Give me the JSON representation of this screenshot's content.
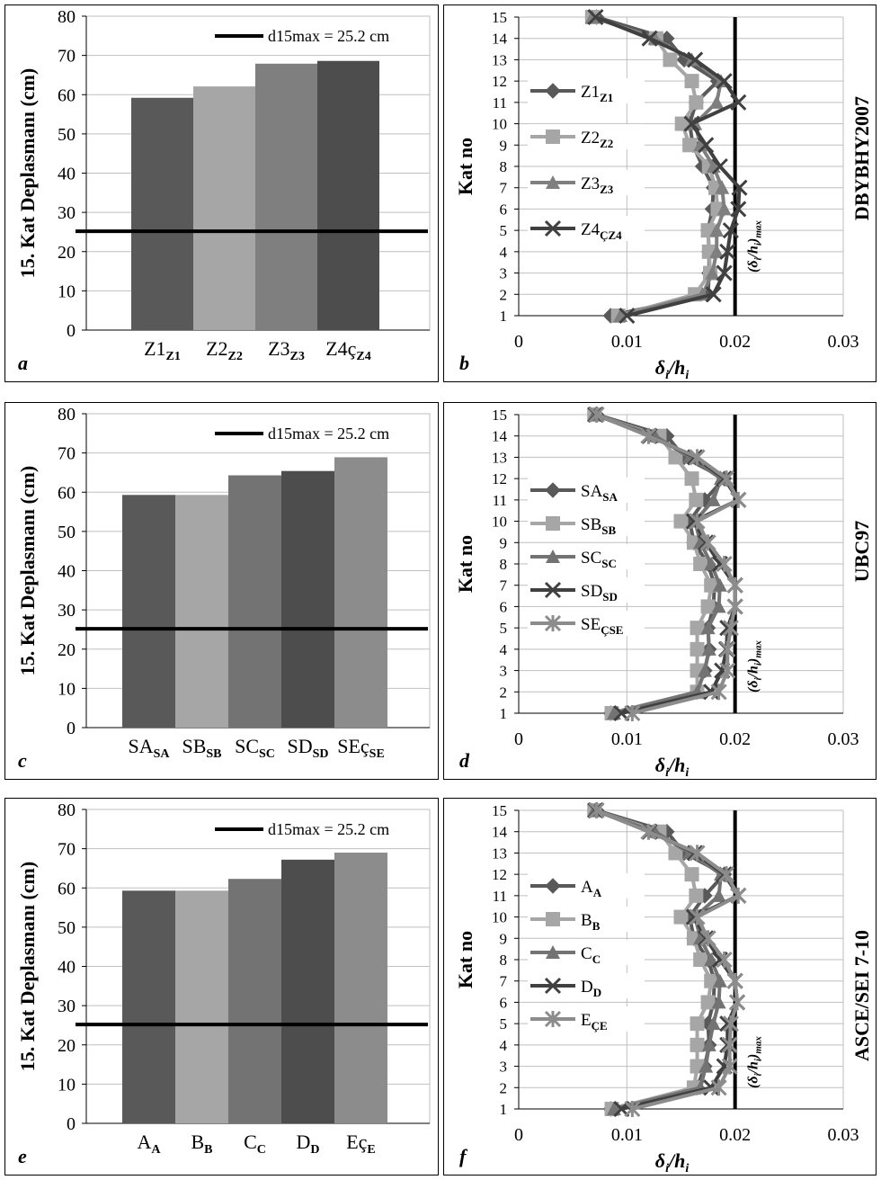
{
  "charts_left": [
    {
      "letter": "a",
      "ylabel": "15. Kat Deplasmanı (cm)",
      "ylim": [
        0,
        80
      ],
      "yticks": [
        0,
        10,
        20,
        30,
        40,
        50,
        60,
        70,
        80
      ],
      "ref_value": 25.2,
      "legend": "d15max = 25.2 cm",
      "colors": [
        "#595959",
        "#a6a6a6",
        "#7f7f7f",
        "#4d4d4d"
      ],
      "categories": [
        {
          "base": "Z1",
          "sub": "Z1"
        },
        {
          "base": "Z2",
          "sub": "Z2"
        },
        {
          "base": "Z3",
          "sub": "Z3"
        },
        {
          "base": "Z4ç",
          "sub": "Z4"
        }
      ],
      "values": [
        59.2,
        62.1,
        67.9,
        68.6
      ]
    },
    {
      "letter": "c",
      "ylabel": "15. Kat Deplasmanı (cm)",
      "ylim": [
        0,
        80
      ],
      "yticks": [
        0,
        10,
        20,
        30,
        40,
        50,
        60,
        70,
        80
      ],
      "ref_value": 25.2,
      "legend": "d15max = 25.2 cm",
      "colors": [
        "#595959",
        "#a6a6a6",
        "#737373",
        "#4d4d4d",
        "#8c8c8c"
      ],
      "categories": [
        {
          "base": "SA",
          "sub": "SA"
        },
        {
          "base": "SB",
          "sub": "SB"
        },
        {
          "base": "SC",
          "sub": "SC"
        },
        {
          "base": "SD",
          "sub": "SD"
        },
        {
          "base": "SEç",
          "sub": "SE"
        }
      ],
      "values": [
        59.3,
        59.3,
        64.3,
        65.4,
        68.9
      ]
    },
    {
      "letter": "e",
      "ylabel": "15. Kat Deplasmanı (cm)",
      "ylim": [
        0,
        80
      ],
      "yticks": [
        0,
        10,
        20,
        30,
        40,
        50,
        60,
        70,
        80
      ],
      "ref_value": 25.2,
      "legend": "d15max = 25.2 cm",
      "colors": [
        "#595959",
        "#a6a6a6",
        "#737373",
        "#4d4d4d",
        "#8c8c8c"
      ],
      "categories": [
        {
          "base": "A",
          "sub": "A"
        },
        {
          "base": "B",
          "sub": "B"
        },
        {
          "base": "C",
          "sub": "C"
        },
        {
          "base": "D",
          "sub": "D"
        },
        {
          "base": "Eç",
          "sub": "E"
        }
      ],
      "values": [
        59.3,
        59.3,
        62.3,
        67.2,
        69.0
      ]
    }
  ],
  "charts_right": [
    {
      "letter": "b",
      "ylabel": "Kat no",
      "xlabel_main": "δ",
      "xlabel_sub": "i",
      "xlabel_mid": "/h",
      "xlabel_sub2": "i",
      "side_label": "DBYBHY2007",
      "limit_label": "(δi/hi)max",
      "xlim": [
        0,
        0.03
      ],
      "xticks": [
        0,
        0.01,
        0.02,
        0.03
      ],
      "xtick_labels": [
        "0",
        "0.01",
        "0.02",
        "0.03"
      ],
      "ylim": [
        1,
        15
      ],
      "limit_x": 0.02,
      "series": [
        {
          "base": "Z1",
          "sub": "Z1",
          "marker": "diamond",
          "color": "#595959",
          "x": [
            0.0085,
            0.0175,
            0.0176,
            0.0176,
            0.0175,
            0.0179,
            0.018,
            0.017,
            0.0161,
            0.0158,
            0.0164,
            0.0184,
            0.0153,
            0.0137,
            0.0072
          ]
        },
        {
          "base": "Z2",
          "sub": "Z2",
          "marker": "square",
          "color": "#a6a6a6",
          "x": [
            0.0092,
            0.0163,
            0.0177,
            0.0176,
            0.0175,
            0.0184,
            0.0182,
            0.0176,
            0.0158,
            0.0151,
            0.0164,
            0.016,
            0.014,
            0.0127,
            0.0068
          ]
        },
        {
          "base": "Z3",
          "sub": "Z3",
          "marker": "triangle",
          "color": "#7f7f7f",
          "x": [
            0.0094,
            0.017,
            0.0179,
            0.0183,
            0.0183,
            0.019,
            0.0188,
            0.018,
            0.0168,
            0.0163,
            0.0183,
            0.0187,
            0.016,
            0.0126,
            0.0068
          ]
        },
        {
          "base": "Z4",
          "sub": "Z4",
          "prefix_sub": "Ç",
          "marker": "x",
          "color": "#404040",
          "x": [
            0.01,
            0.018,
            0.019,
            0.0193,
            0.0196,
            0.0203,
            0.0204,
            0.0186,
            0.0173,
            0.016,
            0.0203,
            0.019,
            0.0163,
            0.0121,
            0.0071
          ]
        }
      ]
    },
    {
      "letter": "d",
      "ylabel": "Kat no",
      "xlabel_main": "δ",
      "xlabel_sub": "i",
      "xlabel_mid": "/h",
      "xlabel_sub2": "i",
      "side_label": "UBC97",
      "limit_label": "(δi/hi)max",
      "xlim": [
        0,
        0.03
      ],
      "xticks": [
        0,
        0.01,
        0.02,
        0.03
      ],
      "xtick_labels": [
        "0",
        "0.01",
        "0.02",
        "0.03"
      ],
      "ylim": [
        1,
        15
      ],
      "limit_x": 0.02,
      "series": [
        {
          "base": "SA",
          "sub": "SA",
          "marker": "diamond",
          "color": "#595959",
          "x": [
            0.0085,
            0.0165,
            0.0172,
            0.0176,
            0.0175,
            0.018,
            0.0181,
            0.0175,
            0.0162,
            0.0158,
            0.0172,
            0.019,
            0.0153,
            0.0137,
            0.0072
          ]
        },
        {
          "base": "SB",
          "sub": "SB",
          "marker": "square",
          "color": "#a6a6a6",
          "x": [
            0.0086,
            0.0165,
            0.0165,
            0.0165,
            0.0165,
            0.0175,
            0.0178,
            0.0168,
            0.0162,
            0.015,
            0.0164,
            0.016,
            0.0145,
            0.013,
            0.007
          ]
        },
        {
          "base": "SC",
          "sub": "SC",
          "marker": "triangle",
          "color": "#737373",
          "x": [
            0.0088,
            0.0165,
            0.0172,
            0.0176,
            0.0175,
            0.0185,
            0.0186,
            0.0178,
            0.0168,
            0.0163,
            0.018,
            0.0187,
            0.0158,
            0.0126,
            0.007
          ]
        },
        {
          "base": "SD",
          "sub": "SD",
          "marker": "x",
          "color": "#404040",
          "x": [
            0.0095,
            0.0178,
            0.0188,
            0.0192,
            0.0193,
            0.02,
            0.02,
            0.0186,
            0.0173,
            0.0162,
            0.0203,
            0.019,
            0.0163,
            0.0121,
            0.0071
          ]
        },
        {
          "base": "SE",
          "sub": "SE",
          "prefix_sub": "Ç",
          "marker": "star",
          "color": "#8c8c8c",
          "x": [
            0.0105,
            0.0185,
            0.0193,
            0.0193,
            0.0196,
            0.02,
            0.02,
            0.019,
            0.0175,
            0.0165,
            0.0203,
            0.0192,
            0.0165,
            0.012,
            0.0072
          ]
        }
      ]
    },
    {
      "letter": "f",
      "ylabel": "Kat no",
      "xlabel_main": "δ",
      "xlabel_sub": "i",
      "xlabel_mid": "/h",
      "xlabel_sub2": "i",
      "side_label": "ASCE/SEI 7-10",
      "limit_label": "(δi/hi)max",
      "xlim": [
        0,
        0.03
      ],
      "xticks": [
        0,
        0.01,
        0.02,
        0.03
      ],
      "xtick_labels": [
        "0",
        "0.01",
        "0.02",
        "0.03"
      ],
      "ylim": [
        1,
        15
      ],
      "limit_x": 0.02,
      "series": [
        {
          "base": "A",
          "sub": "A",
          "marker": "diamond",
          "color": "#595959",
          "x": [
            0.0085,
            0.0165,
            0.0172,
            0.0176,
            0.0175,
            0.018,
            0.0181,
            0.0175,
            0.0162,
            0.0158,
            0.0172,
            0.019,
            0.0153,
            0.0137,
            0.0072
          ]
        },
        {
          "base": "B",
          "sub": "B",
          "marker": "square",
          "color": "#a6a6a6",
          "x": [
            0.0086,
            0.0162,
            0.0165,
            0.0165,
            0.0165,
            0.0175,
            0.0178,
            0.0168,
            0.0162,
            0.015,
            0.0164,
            0.016,
            0.0145,
            0.013,
            0.007
          ]
        },
        {
          "base": "C",
          "sub": "C",
          "marker": "triangle",
          "color": "#737373",
          "x": [
            0.0088,
            0.0168,
            0.0173,
            0.0176,
            0.018,
            0.0185,
            0.0186,
            0.0178,
            0.0168,
            0.0163,
            0.0185,
            0.0187,
            0.0158,
            0.0126,
            0.007
          ]
        },
        {
          "base": "D",
          "sub": "D",
          "marker": "x",
          "color": "#404040",
          "x": [
            0.0095,
            0.0178,
            0.019,
            0.0193,
            0.0193,
            0.0202,
            0.02,
            0.0186,
            0.0173,
            0.0162,
            0.0203,
            0.019,
            0.0163,
            0.0121,
            0.0071
          ]
        },
        {
          "base": "E",
          "sub": "E",
          "prefix_sub": "Ç",
          "marker": "star",
          "color": "#8c8c8c",
          "x": [
            0.0105,
            0.0185,
            0.0195,
            0.0195,
            0.0196,
            0.0202,
            0.02,
            0.019,
            0.0175,
            0.0165,
            0.0203,
            0.0192,
            0.0165,
            0.012,
            0.0072
          ]
        }
      ]
    }
  ]
}
